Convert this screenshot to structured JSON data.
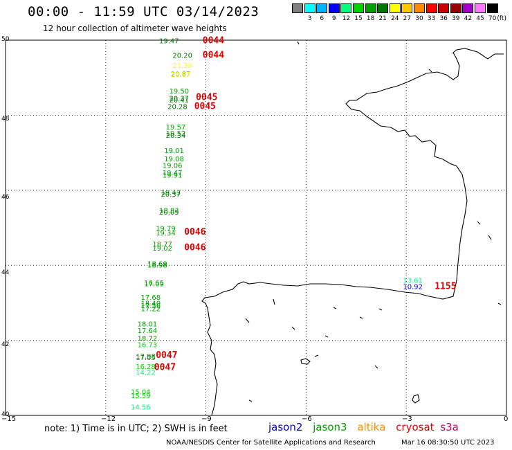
{
  "header": {
    "title": "00:00 - 11:59 UTC 03/14/2023",
    "subtitle": "12 hour collection of altimeter wave heights"
  },
  "legend": {
    "unit": "(ft)",
    "bins": [
      {
        "color": "#808080",
        "label": ""
      },
      {
        "color": "#00ffff",
        "label": "3"
      },
      {
        "color": "#00b4ff",
        "label": "6"
      },
      {
        "color": "#0000ff",
        "label": "9"
      },
      {
        "color": "#00ff7a",
        "label": "12"
      },
      {
        "color": "#00d200",
        "label": "15"
      },
      {
        "color": "#00a000",
        "label": "18"
      },
      {
        "color": "#007800",
        "label": "21"
      },
      {
        "color": "#ffff00",
        "label": "24"
      },
      {
        "color": "#ffc800",
        "label": "27"
      },
      {
        "color": "#ff8c00",
        "label": "30"
      },
      {
        "color": "#ff0000",
        "label": "33"
      },
      {
        "color": "#c80000",
        "label": "36"
      },
      {
        "color": "#960000",
        "label": "39"
      },
      {
        "color": "#a000c8",
        "label": "42"
      },
      {
        "color": "#ff78ff",
        "label": "45"
      },
      {
        "color": "#000000",
        "label": "70"
      }
    ]
  },
  "axes": {
    "lon_ticks": [
      "−15",
      "−12",
      "−9",
      "−6",
      "−3",
      "0"
    ],
    "lat_ticks": [
      "50",
      "48",
      "46",
      "44",
      "42",
      "40"
    ]
  },
  "observations": [
    {
      "lon": -10.4,
      "lat": 49.92,
      "value": "19.47",
      "color": "#007800"
    },
    {
      "lon": -10.0,
      "lat": 49.53,
      "value": "20.20",
      "color": "#007800"
    },
    {
      "lon": -10.0,
      "lat": 49.26,
      "value": "21.38",
      "color": "#ffff00"
    },
    {
      "lon": -10.05,
      "lat": 49.03,
      "value": "20.87",
      "color": "#007800"
    },
    {
      "lon": -10.05,
      "lat": 49.02,
      "value": "20.87",
      "color": "#ffff00"
    },
    {
      "lon": -10.1,
      "lat": 48.58,
      "value": "19.50",
      "color": "#00a000"
    },
    {
      "lon": -10.1,
      "lat": 48.39,
      "value": "20.37",
      "color": "#007800"
    },
    {
      "lon": -10.1,
      "lat": 48.34,
      "value": "20.41",
      "color": "#007800"
    },
    {
      "lon": -10.15,
      "lat": 48.16,
      "value": "20.28",
      "color": "#007800"
    },
    {
      "lon": -10.2,
      "lat": 47.62,
      "value": "19.57",
      "color": "#00a000"
    },
    {
      "lon": -10.2,
      "lat": 47.45,
      "value": "19.52",
      "color": "#00a000"
    },
    {
      "lon": -10.2,
      "lat": 47.4,
      "value": "20.34",
      "color": "#007800"
    },
    {
      "lon": -10.25,
      "lat": 46.99,
      "value": "19.01",
      "color": "#00a000"
    },
    {
      "lon": -10.25,
      "lat": 46.77,
      "value": "19.08",
      "color": "#00a000"
    },
    {
      "lon": -10.3,
      "lat": 46.6,
      "value": "19.06",
      "color": "#00a000"
    },
    {
      "lon": -10.3,
      "lat": 46.4,
      "value": "19.47",
      "color": "#00a000"
    },
    {
      "lon": -10.3,
      "lat": 46.34,
      "value": "19.91",
      "color": "#00a000"
    },
    {
      "lon": -10.35,
      "lat": 45.88,
      "value": "19.43",
      "color": "#00a000"
    },
    {
      "lon": -10.35,
      "lat": 45.83,
      "value": "20.37",
      "color": "#007800"
    },
    {
      "lon": -10.4,
      "lat": 45.4,
      "value": "18.83",
      "color": "#00a000"
    },
    {
      "lon": -10.4,
      "lat": 45.35,
      "value": "20.05",
      "color": "#007800"
    },
    {
      "lon": -10.5,
      "lat": 44.92,
      "value": "19.79",
      "color": "#00a000"
    },
    {
      "lon": -10.5,
      "lat": 44.8,
      "value": "19.34",
      "color": "#00a000"
    },
    {
      "lon": -10.6,
      "lat": 44.5,
      "value": "18.77",
      "color": "#00a000"
    },
    {
      "lon": -10.6,
      "lat": 44.39,
      "value": "19.02",
      "color": "#00a000"
    },
    {
      "lon": -10.75,
      "lat": 43.98,
      "value": "18.69",
      "color": "#00a000"
    },
    {
      "lon": -10.75,
      "lat": 43.94,
      "value": "18.98",
      "color": "#00a000"
    },
    {
      "lon": -10.85,
      "lat": 43.47,
      "value": "16.65",
      "color": "#00d200"
    },
    {
      "lon": -10.85,
      "lat": 43.44,
      "value": "17.09",
      "color": "#00a000"
    },
    {
      "lon": -10.95,
      "lat": 43.08,
      "value": "17.68",
      "color": "#00a000"
    },
    {
      "lon": -10.95,
      "lat": 42.92,
      "value": "18.40",
      "color": "#00a000"
    },
    {
      "lon": -10.95,
      "lat": 42.86,
      "value": "17.56",
      "color": "#00a000"
    },
    {
      "lon": -10.95,
      "lat": 42.78,
      "value": "17.22",
      "color": "#00a000"
    },
    {
      "lon": -11.05,
      "lat": 42.37,
      "value": "18.01",
      "color": "#00a000"
    },
    {
      "lon": -11.05,
      "lat": 42.2,
      "value": "17.64",
      "color": "#00a000"
    },
    {
      "lon": -11.05,
      "lat": 41.99,
      "value": "18.72",
      "color": "#00a000"
    },
    {
      "lon": -11.05,
      "lat": 41.82,
      "value": "16.73",
      "color": "#00d200"
    },
    {
      "lon": -11.1,
      "lat": 41.51,
      "value": "17.98",
      "color": "#00a000"
    },
    {
      "lon": -11.1,
      "lat": 41.48,
      "value": "17.05",
      "color": "#00a000"
    },
    {
      "lon": -11.1,
      "lat": 41.24,
      "value": "16.28",
      "color": "#00d200"
    },
    {
      "lon": -11.1,
      "lat": 41.08,
      "value": "14.22",
      "color": "#00ff7a"
    },
    {
      "lon": -11.25,
      "lat": 40.56,
      "value": "15.04",
      "color": "#00d200"
    },
    {
      "lon": -11.25,
      "lat": 40.46,
      "value": "15.59",
      "color": "#00d200"
    },
    {
      "lon": -11.25,
      "lat": 40.16,
      "value": "14.56",
      "color": "#00ff7a"
    },
    {
      "lon": -3.1,
      "lat": 43.53,
      "value": "13.61",
      "color": "#00ff7a"
    },
    {
      "lon": -3.1,
      "lat": 43.37,
      "value": "10.92",
      "color": "#0000ff"
    }
  ],
  "times": [
    {
      "lon": -9.1,
      "lat": 49.92,
      "value": "0044"
    },
    {
      "lon": -9.1,
      "lat": 49.53,
      "value": "0044"
    },
    {
      "lon": -9.3,
      "lat": 48.4,
      "value": "0045"
    },
    {
      "lon": -9.35,
      "lat": 48.16,
      "value": "0045"
    },
    {
      "lon": -9.65,
      "lat": 44.82,
      "value": "0046"
    },
    {
      "lon": -9.65,
      "lat": 44.4,
      "value": "0046"
    },
    {
      "lon": -10.5,
      "lat": 41.53,
      "value": "0047"
    },
    {
      "lon": -10.55,
      "lat": 41.21,
      "value": "0047"
    },
    {
      "lon": -2.15,
      "lat": 43.37,
      "value": "1155"
    }
  ],
  "footer": {
    "note": "note: 1) Time is in UTC; 2) SWH is in feet",
    "satellites": [
      {
        "name": "jason2",
        "color": "#0000c8"
      },
      {
        "name": "jason3",
        "color": "#00a000"
      },
      {
        "name": "altika",
        "color": "#ff8c00"
      },
      {
        "name": "cryosat",
        "color": "#e00000"
      },
      {
        "name": "s3a",
        "color": "#c80064"
      }
    ],
    "credit": "NOAA/NESDIS Center for Satellite Applications and Research",
    "stamp": "Mar 16 08:30:50 UTC 2023"
  }
}
